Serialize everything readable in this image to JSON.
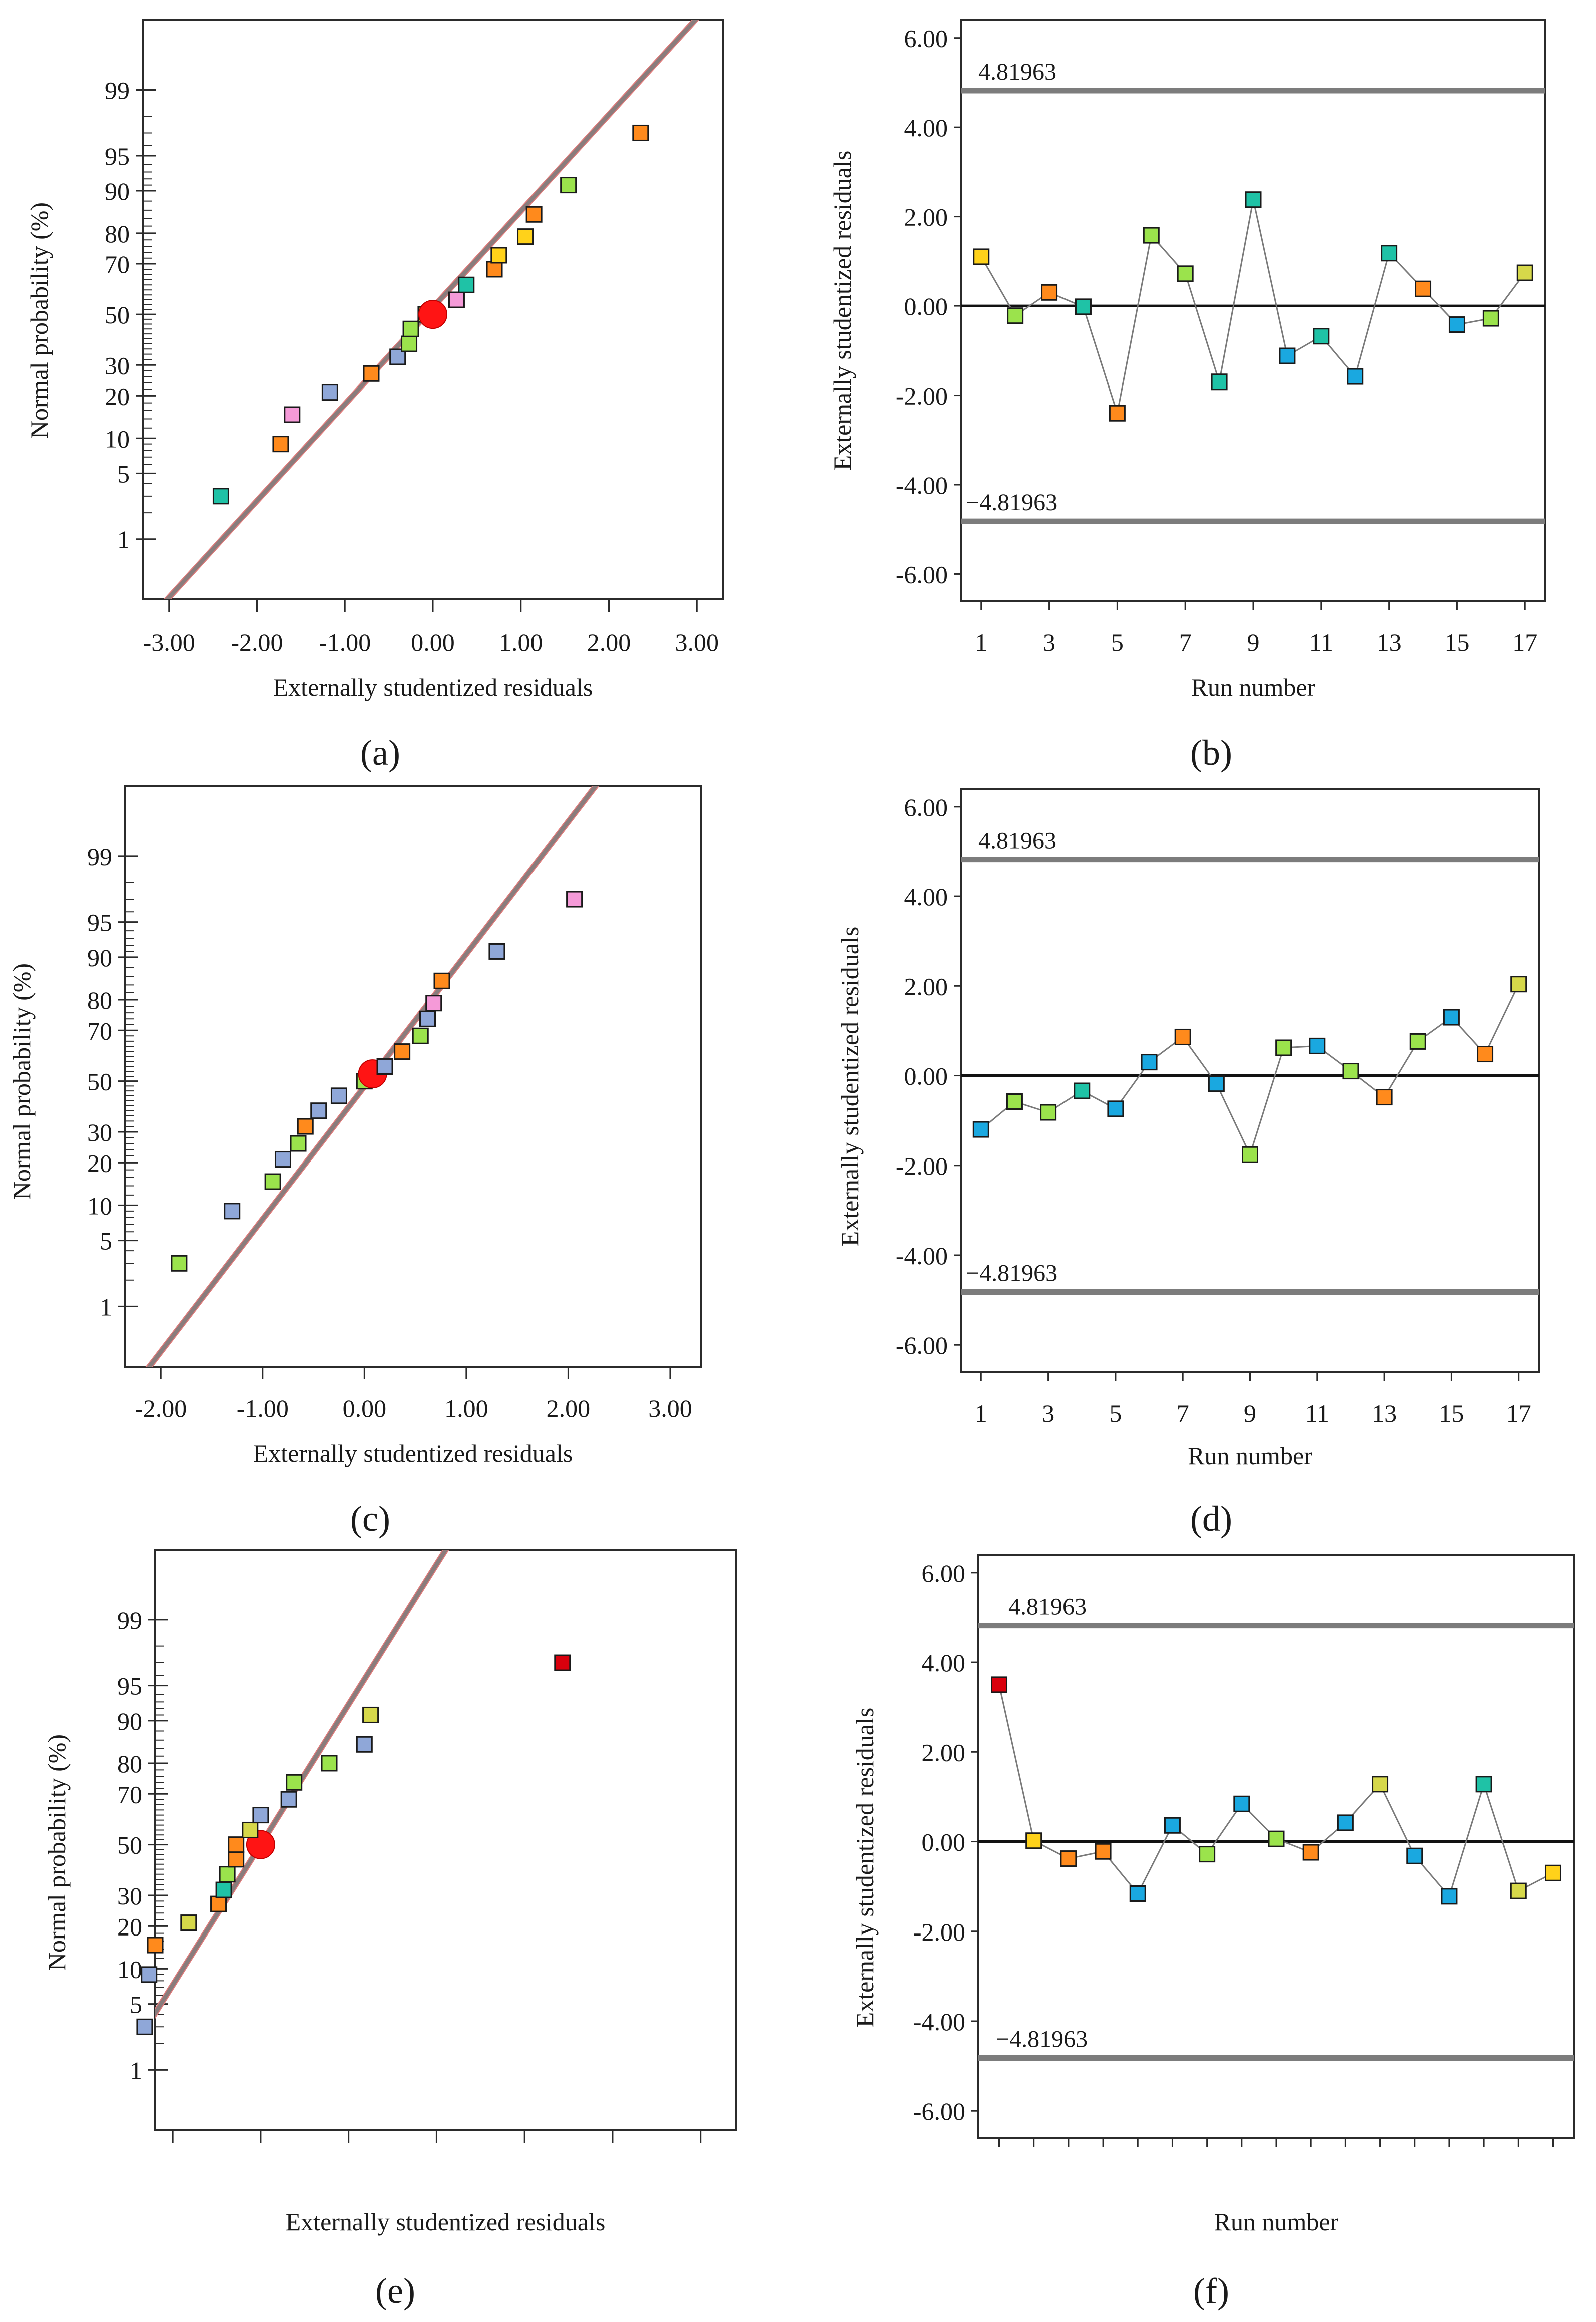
{
  "figure": {
    "panel_labels": [
      "(a)",
      "(b)",
      "(c)",
      "(d)",
      "(e)",
      "(f)"
    ]
  },
  "chart_data": [
    {
      "id": "a",
      "type": "scatter",
      "subtype": "normal-probability",
      "title": "",
      "xlabel": "Externally studentized residuals",
      "ylabel": "Normal probability (%)",
      "xlim": [
        -3.3,
        3.3
      ],
      "xticks": [
        -3,
        -2,
        -1,
        0,
        1,
        2,
        3
      ],
      "xtick_labels": [
        "-3.00",
        "-2.00",
        "-1.00",
        "0.00",
        "1.00",
        "2.00",
        "3.00"
      ],
      "yticks": [
        1,
        5,
        10,
        20,
        30,
        50,
        70,
        80,
        90,
        95,
        99
      ],
      "ytick_labels": [
        "1",
        "5",
        "10",
        "20",
        "30",
        "50",
        "70",
        "80",
        "90",
        "95",
        "99"
      ],
      "reference_line": {
        "x_at_50": -0.07,
        "slope": 1.0
      },
      "points": [
        {
          "x": -2.41,
          "y": 3.0,
          "color": "#1fc2a6"
        },
        {
          "x": -1.73,
          "y": 9.0,
          "color": "#ff8a1c"
        },
        {
          "x": -1.6,
          "y": 15.0,
          "color": "#f59ad8"
        },
        {
          "x": -1.17,
          "y": 21.0,
          "color": "#8fa7d8"
        },
        {
          "x": -0.7,
          "y": 27.0,
          "color": "#ff8a1c"
        },
        {
          "x": -0.4,
          "y": 33.0,
          "color": "#8fa7d8"
        },
        {
          "x": -0.27,
          "y": 38.0,
          "color": "#9be34c"
        },
        {
          "x": -0.25,
          "y": 44.0,
          "color": "#9be34c"
        },
        {
          "x": -0.08,
          "y": 50.0,
          "color": "#9be34c"
        },
        {
          "x": 0.0,
          "y": 50.0,
          "color": "#ff1414",
          "marker": "circle"
        },
        {
          "x": 0.27,
          "y": 56.0,
          "color": "#f59ad8"
        },
        {
          "x": 0.38,
          "y": 62.0,
          "color": "#1fc2a6"
        },
        {
          "x": 0.7,
          "y": 68.0,
          "color": "#ff8a1c"
        },
        {
          "x": 0.75,
          "y": 73.0,
          "color": "#ffd21a"
        },
        {
          "x": 1.05,
          "y": 79.0,
          "color": "#ffd21a"
        },
        {
          "x": 1.15,
          "y": 85.0,
          "color": "#ff8a1c"
        },
        {
          "x": 1.54,
          "y": 91.0,
          "color": "#9be34c"
        },
        {
          "x": 2.36,
          "y": 97.0,
          "color": "#ff8a1c"
        }
      ]
    },
    {
      "id": "b",
      "type": "line",
      "subtype": "residuals-vs-run",
      "title": "",
      "xlabel": "Run number",
      "ylabel": "Externally studentized residuals",
      "xlim": [
        0.4,
        17.6
      ],
      "ylim": [
        -6.6,
        6.4
      ],
      "xticks": [
        1,
        3,
        5,
        7,
        9,
        11,
        13,
        15,
        17
      ],
      "xtick_labels": [
        "1",
        "3",
        "5",
        "7",
        "9",
        "11",
        "13",
        "15",
        "17"
      ],
      "yticks": [
        6,
        4,
        2,
        0,
        -2,
        -4,
        -6
      ],
      "ytick_labels": [
        "6.00",
        "4.00",
        "2.00",
        "0.00",
        "-2.00",
        "-4.00",
        "-6.00"
      ],
      "limits": {
        "upper": 4.81963,
        "lower": -4.81963,
        "upper_label": "4.81963",
        "lower_label": "−4.81963"
      },
      "x": [
        1,
        2,
        3,
        4,
        5,
        6,
        7,
        8,
        9,
        10,
        11,
        12,
        13,
        14,
        15,
        16,
        17
      ],
      "values": [
        1.1,
        -0.22,
        0.3,
        -0.02,
        -2.4,
        1.58,
        0.72,
        -1.7,
        2.38,
        -1.12,
        -0.68,
        -1.58,
        1.18,
        0.38,
        -0.42,
        -0.28,
        0.74
      ],
      "colors": [
        "#ffd21a",
        "#9be34c",
        "#ff8a1c",
        "#1fc2a6",
        "#ff8a1c",
        "#9be34c",
        "#9be34c",
        "#1fc2a6",
        "#1fc2a6",
        "#1aa8e0",
        "#1fc2a6",
        "#1aa8e0",
        "#1fc2a6",
        "#ff8a1c",
        "#1aa8e0",
        "#9be34c",
        "#d6d84a"
      ]
    },
    {
      "id": "c",
      "type": "scatter",
      "subtype": "normal-probability",
      "title": "",
      "xlabel": "Externally studentized residuals",
      "ylabel": "Normal probability (%)",
      "xlim": [
        -2.35,
        3.3
      ],
      "xticks": [
        -2,
        -1,
        0,
        1,
        2,
        3
      ],
      "xtick_labels": [
        "-2.00",
        "-1.00",
        "0.00",
        "1.00",
        "2.00",
        "3.00"
      ],
      "yticks": [
        1,
        5,
        10,
        20,
        30,
        50,
        70,
        80,
        90,
        95,
        99
      ],
      "ytick_labels": [
        "1",
        "5",
        "10",
        "20",
        "30",
        "50",
        "70",
        "80",
        "90",
        "95",
        "99"
      ],
      "reference_line": {
        "x_at_50": 0.04,
        "slope": 0.73
      },
      "points": [
        {
          "x": -1.82,
          "y": 3.0,
          "color": "#9be34c"
        },
        {
          "x": -1.3,
          "y": 9.0,
          "color": "#8fa7d8"
        },
        {
          "x": -0.9,
          "y": 15.0,
          "color": "#9be34c"
        },
        {
          "x": -0.8,
          "y": 21.0,
          "color": "#8fa7d8"
        },
        {
          "x": -0.65,
          "y": 26.0,
          "color": "#9be34c"
        },
        {
          "x": -0.58,
          "y": 32.0,
          "color": "#ff8a1c"
        },
        {
          "x": -0.45,
          "y": 38.0,
          "color": "#8fa7d8"
        },
        {
          "x": -0.25,
          "y": 44.0,
          "color": "#8fa7d8"
        },
        {
          "x": 0.0,
          "y": 50.0,
          "color": "#9be34c"
        },
        {
          "x": 0.08,
          "y": 53.0,
          "color": "#ff1414",
          "marker": "circle"
        },
        {
          "x": 0.2,
          "y": 56.0,
          "color": "#8fa7d8"
        },
        {
          "x": 0.37,
          "y": 62.0,
          "color": "#ff8a1c"
        },
        {
          "x": 0.55,
          "y": 68.0,
          "color": "#9be34c"
        },
        {
          "x": 0.62,
          "y": 74.0,
          "color": "#8fa7d8"
        },
        {
          "x": 0.68,
          "y": 79.0,
          "color": "#f59ad8"
        },
        {
          "x": 0.76,
          "y": 85.0,
          "color": "#ff8a1c"
        },
        {
          "x": 1.3,
          "y": 91.0,
          "color": "#8fa7d8"
        },
        {
          "x": 2.06,
          "y": 97.0,
          "color": "#f59ad8"
        }
      ]
    },
    {
      "id": "d",
      "type": "line",
      "subtype": "residuals-vs-run",
      "title": "",
      "xlabel": "Run number",
      "ylabel": "Externally studentized residuals",
      "xlim": [
        0.4,
        17.6
      ],
      "ylim": [
        -6.6,
        6.4
      ],
      "xticks": [
        1,
        3,
        5,
        7,
        9,
        11,
        13,
        15,
        17
      ],
      "xtick_labels": [
        "1",
        "3",
        "5",
        "7",
        "9",
        "11",
        "13",
        "15",
        "17"
      ],
      "yticks": [
        6,
        4,
        2,
        0,
        -2,
        -4,
        -6
      ],
      "ytick_labels": [
        "6.00",
        "4.00",
        "2.00",
        "0.00",
        "-2.00",
        "-4.00",
        "-6.00"
      ],
      "limits": {
        "upper": 4.81963,
        "lower": -4.81963,
        "upper_label": "4.81963",
        "lower_label": "−4.81963"
      },
      "x": [
        1,
        2,
        3,
        4,
        5,
        6,
        7,
        8,
        9,
        10,
        11,
        12,
        13,
        14,
        15,
        16,
        17
      ],
      "values": [
        -1.2,
        -0.58,
        -0.82,
        -0.34,
        -0.74,
        0.3,
        0.86,
        -0.18,
        -1.76,
        0.62,
        0.66,
        0.1,
        -0.48,
        0.76,
        1.3,
        0.48,
        2.04
      ],
      "colors": [
        "#1aa8e0",
        "#9be34c",
        "#9be34c",
        "#1fc2a6",
        "#1aa8e0",
        "#1aa8e0",
        "#ff8a1c",
        "#1aa8e0",
        "#9be34c",
        "#9be34c",
        "#1aa8e0",
        "#9be34c",
        "#ff8a1c",
        "#9be34c",
        "#1aa8e0",
        "#ff8a1c",
        "#d6d84a"
      ]
    },
    {
      "id": "e",
      "type": "scatter",
      "subtype": "normal-probability",
      "title": "",
      "xlabel": "Externally studentized residuals",
      "ylabel": "Normal probability (%)",
      "xlim": [
        -1.2,
        5.4
      ],
      "xticks": [
        -1,
        0,
        1,
        2,
        3,
        4,
        5
      ],
      "xtick_labels": [],
      "yticks": [
        1,
        5,
        10,
        20,
        30,
        50,
        70,
        80,
        90,
        95,
        99
      ],
      "ytick_labels": [
        "1",
        "5",
        "10",
        "20",
        "30",
        "50",
        "70",
        "80",
        "90",
        "95",
        "99"
      ],
      "reference_line": {
        "x_at_50": 0.0,
        "slope": 0.69
      },
      "points": [
        {
          "x": -1.32,
          "y": 3.0,
          "color": "#8fa7d8"
        },
        {
          "x": -1.27,
          "y": 9.0,
          "color": "#8fa7d8"
        },
        {
          "x": -1.2,
          "y": 15.0,
          "color": "#ff8a1c"
        },
        {
          "x": -0.82,
          "y": 21.0,
          "color": "#d6d84a"
        },
        {
          "x": -0.48,
          "y": 27.0,
          "color": "#ff8a1c"
        },
        {
          "x": -0.42,
          "y": 32.0,
          "color": "#1fc2a6"
        },
        {
          "x": -0.38,
          "y": 38.0,
          "color": "#9be34c"
        },
        {
          "x": -0.28,
          "y": 44.0,
          "color": "#ff8a1c"
        },
        {
          "x": -0.28,
          "y": 50.0,
          "color": "#ff8a1c"
        },
        {
          "x": 0.0,
          "y": 50.0,
          "color": "#ff1414",
          "marker": "circle"
        },
        {
          "x": -0.12,
          "y": 56.0,
          "color": "#d6d84a"
        },
        {
          "x": 0.0,
          "y": 62.0,
          "color": "#8fa7d8"
        },
        {
          "x": 0.32,
          "y": 68.0,
          "color": "#8fa7d8"
        },
        {
          "x": 0.38,
          "y": 74.0,
          "color": "#9be34c"
        },
        {
          "x": 0.78,
          "y": 80.0,
          "color": "#9be34c"
        },
        {
          "x": 1.18,
          "y": 85.0,
          "color": "#8fa7d8"
        },
        {
          "x": 1.25,
          "y": 91.0,
          "color": "#d6d84a"
        },
        {
          "x": 3.43,
          "y": 97.0,
          "color": "#d9000d"
        }
      ]
    },
    {
      "id": "f",
      "type": "line",
      "subtype": "residuals-vs-run",
      "title": "",
      "xlabel": "Run number",
      "ylabel": "Externally studentized residuals",
      "xlim": [
        0.4,
        17.6
      ],
      "ylim": [
        -6.6,
        6.4
      ],
      "xticks": [
        1,
        2,
        3,
        4,
        5,
        6,
        7,
        8,
        9,
        10,
        11,
        12,
        13,
        14,
        15,
        16,
        17
      ],
      "xtick_labels": [],
      "yticks": [
        6,
        4,
        2,
        0,
        -2,
        -4,
        -6
      ],
      "ytick_labels": [
        "6.00",
        "4.00",
        "2.00",
        "0.00",
        "-2.00",
        "-4.00",
        "-6.00"
      ],
      "limits": {
        "upper": 4.81963,
        "lower": -4.81963,
        "upper_label": "4.81963",
        "lower_label": "−4.81963"
      },
      "x": [
        1,
        2,
        3,
        4,
        5,
        6,
        7,
        8,
        9,
        10,
        11,
        12,
        13,
        14,
        15,
        16,
        17
      ],
      "values": [
        3.5,
        0.02,
        -0.38,
        -0.22,
        -1.16,
        0.36,
        -0.28,
        0.84,
        0.06,
        -0.24,
        0.42,
        1.28,
        -0.32,
        -1.22,
        1.28,
        -1.1,
        -0.7
      ],
      "colors": [
        "#d9000d",
        "#ffd21a",
        "#ff8a1c",
        "#ff8a1c",
        "#1aa8e0",
        "#1aa8e0",
        "#9be34c",
        "#1aa8e0",
        "#9be34c",
        "#ff8a1c",
        "#1aa8e0",
        "#d6d84a",
        "#1aa8e0",
        "#1aa8e0",
        "#1fc2a6",
        "#d6d84a",
        "#ffd21a"
      ]
    }
  ]
}
